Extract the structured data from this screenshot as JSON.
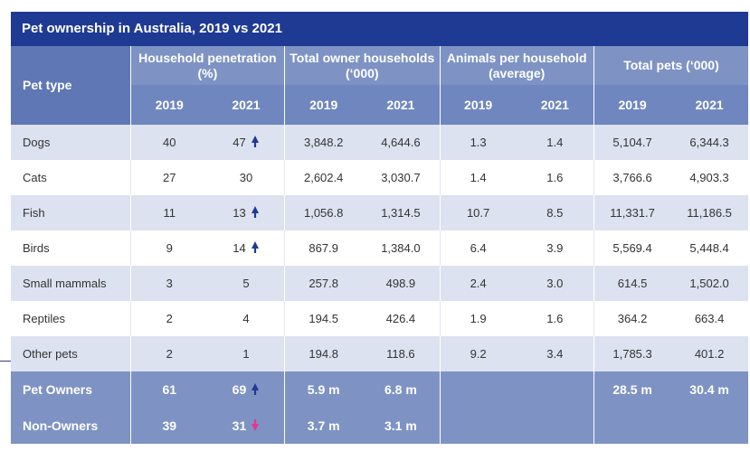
{
  "title": "Pet ownership in Australia, 2019 vs 2021",
  "headers": {
    "pet_type": "Pet type",
    "groups": [
      "Household penetration (%)",
      "Total owner households (‘000)",
      "Animals per household (average)",
      "Total pets (‘000)"
    ],
    "year_a": "2019",
    "year_b": "2021"
  },
  "rows": [
    {
      "name": "Dogs",
      "pen19": "40",
      "pen21": "47",
      "pen21_arrow": "up",
      "hh19": "3,848.2",
      "hh21": "4,644.6",
      "aph19": "1.3",
      "aph21": "1.4",
      "tp19": "5,104.7",
      "tp21": "6,344.3"
    },
    {
      "name": "Cats",
      "pen19": "27",
      "pen21": "30",
      "pen21_arrow": "",
      "hh19": "2,602.4",
      "hh21": "3,030.7",
      "aph19": "1.4",
      "aph21": "1.6",
      "tp19": "3,766.6",
      "tp21": "4,903.3"
    },
    {
      "name": "Fish",
      "pen19": "11",
      "pen21": "13",
      "pen21_arrow": "up",
      "hh19": "1,056.8",
      "hh21": "1,314.5",
      "aph19": "10.7",
      "aph21": "8.5",
      "tp19": "11,331.7",
      "tp21": "11,186.5"
    },
    {
      "name": "Birds",
      "pen19": "9",
      "pen21": "14",
      "pen21_arrow": "up",
      "hh19": "867.9",
      "hh21": "1,384.0",
      "aph19": "6.4",
      "aph21": "3.9",
      "tp19": "5,569.4",
      "tp21": "5,448.4"
    },
    {
      "name": "Small mammals",
      "pen19": "3",
      "pen21": "5",
      "pen21_arrow": "",
      "hh19": "257.8",
      "hh21": "498.9",
      "aph19": "2.4",
      "aph21": "3.0",
      "tp19": "614.5",
      "tp21": "1,502.0"
    },
    {
      "name": "Reptiles",
      "pen19": "2",
      "pen21": "4",
      "pen21_arrow": "",
      "hh19": "194.5",
      "hh21": "426.4",
      "aph19": "1.9",
      "aph21": "1.6",
      "tp19": "364.2",
      "tp21": "663.4"
    },
    {
      "name": "Other pets",
      "pen19": "2",
      "pen21": "1",
      "pen21_arrow": "",
      "hh19": "194.8",
      "hh21": "118.6",
      "aph19": "9.2",
      "aph21": "3.4",
      "tp19": "1,785.3",
      "tp21": "401.2"
    }
  ],
  "summary": [
    {
      "name": "Pet Owners",
      "pen19": "61",
      "pen21": "69",
      "pen21_arrow": "up",
      "hh19": "5.9 m",
      "hh21": "6.8 m",
      "aph19": "",
      "aph21": "",
      "tp19": "28.5 m",
      "tp21": "30.4 m"
    },
    {
      "name": "Non-Owners",
      "pen19": "39",
      "pen21": "31",
      "pen21_arrow": "down",
      "hh19": "3.7 m",
      "hh21": "3.1 m",
      "aph19": "",
      "aph21": "",
      "tp19": "",
      "tp21": ""
    }
  ],
  "colors": {
    "title_bg": "#1f3a93",
    "header_bg": "#7e93c4",
    "alt_row_bg": "#dde2f0",
    "arrow_up": "#1f3a93",
    "arrow_up_on_dark": "#1f3a93",
    "arrow_down": "#e8358a"
  },
  "icons": {
    "up": "arrow-up-icon",
    "down": "arrow-down-icon"
  }
}
